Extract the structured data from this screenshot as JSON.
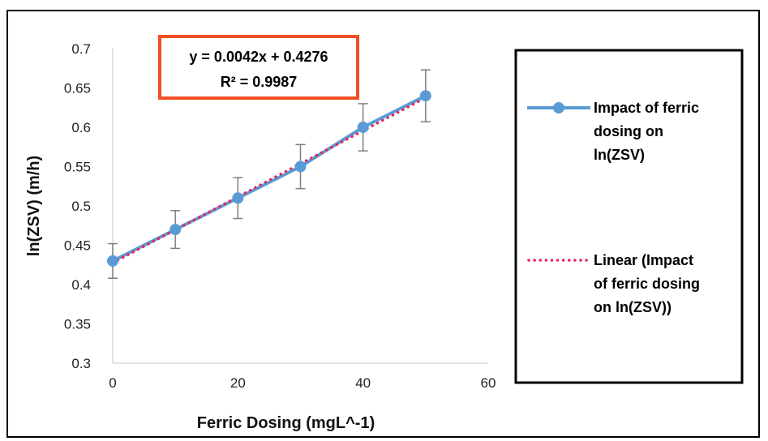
{
  "chart_data": {
    "type": "line",
    "xlabel": "Ferric Dosing (mgL^-1)",
    "ylabel": "ln(ZSV) (m/h)",
    "xlim": [
      0,
      60
    ],
    "ylim": [
      0.3,
      0.7
    ],
    "x_ticks": [
      "0",
      "20",
      "40",
      "60"
    ],
    "y_ticks": [
      "0.3",
      "0.35",
      "0.4",
      "0.45",
      "0.5",
      "0.55",
      "0.6",
      "0.65",
      "0.7"
    ],
    "grid": false,
    "legend_position": "right",
    "series": [
      {
        "name": "Impact of ferric dosing on ln(ZSV)",
        "x": [
          0,
          10,
          20,
          30,
          40,
          50
        ],
        "y": [
          0.43,
          0.47,
          0.51,
          0.55,
          0.6,
          0.64
        ],
        "error": [
          0.022,
          0.024,
          0.026,
          0.028,
          0.03,
          0.033
        ],
        "color": "#5b9bd5"
      }
    ],
    "trendline": {
      "name": "Linear (Impact of ferric dosing on ln(ZSV))",
      "slope": 0.0042,
      "intercept": 0.4276,
      "color": "#e8265a",
      "style": "dotted"
    },
    "annotations": {
      "equation": "y = 0.0042x + 0.4276",
      "r_squared": "R² = 0.9987",
      "box_color": "#f04e23"
    },
    "legend": {
      "series_label_lines": [
        "Impact of ferric",
        "dosing on",
        "ln(ZSV)"
      ],
      "trend_label_lines": [
        "Linear (Impact",
        "of ferric dosing",
        "on ln(ZSV))"
      ]
    }
  }
}
